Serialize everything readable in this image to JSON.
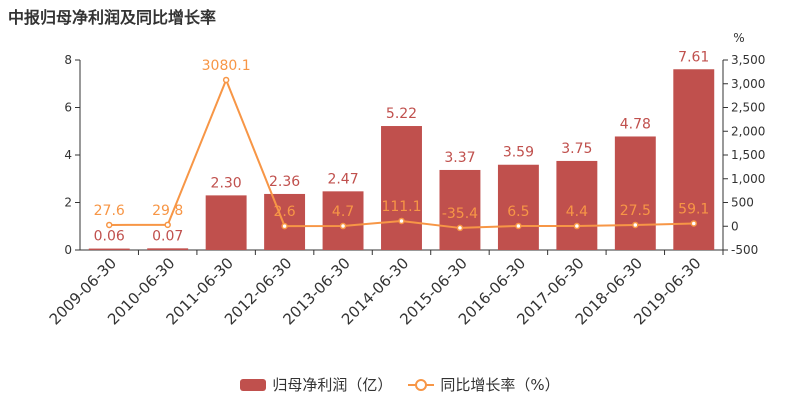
{
  "title": "中报归母净利润及同比增长率",
  "colors": {
    "bar": "#c0504d",
    "line": "#f79646",
    "axis": "#333333"
  },
  "chart_data": {
    "type": "bar",
    "title": "中报归母净利润及同比增长率",
    "categories": [
      "2009-06-30",
      "2010-06-30",
      "2011-06-30",
      "2012-06-30",
      "2013-06-30",
      "2014-06-30",
      "2015-06-30",
      "2016-06-30",
      "2017-06-30",
      "2018-06-30",
      "2019-06-30"
    ],
    "series": [
      {
        "name": "归母净利润（亿）",
        "type": "bar",
        "axis": "left",
        "values": [
          0.06,
          0.07,
          2.3,
          2.36,
          2.47,
          5.22,
          3.37,
          3.59,
          3.75,
          4.78,
          7.61
        ],
        "labels": [
          "0.06",
          "0.07",
          "2.30",
          "2.36",
          "2.47",
          "5.22",
          "3.37",
          "3.59",
          "3.75",
          "4.78",
          "7.61"
        ]
      },
      {
        "name": "同比增长率（%）",
        "type": "line",
        "axis": "right",
        "values": [
          27.6,
          29.8,
          3080.1,
          2.6,
          4.7,
          111.1,
          -35.4,
          6.5,
          4.4,
          27.5,
          59.1
        ],
        "labels": [
          "27.6",
          "29.8",
          "3080.1",
          "2.6",
          "4.7",
          "111.1",
          "-35.4",
          "6.5",
          "4.4",
          "27.5",
          "59.1"
        ]
      }
    ],
    "y_left": {
      "min": 0,
      "max": 8,
      "ticks": [
        "0",
        "2",
        "4",
        "6",
        "8"
      ],
      "tick_values": [
        0,
        2,
        4,
        6,
        8
      ]
    },
    "y_right": {
      "unit": "%",
      "min": -500,
      "max": 3500,
      "ticks": [
        "-500",
        "0",
        "500",
        "1,000",
        "1,500",
        "2,000",
        "2,500",
        "3,000",
        "3,500"
      ],
      "tick_values": [
        -500,
        0,
        500,
        1000,
        1500,
        2000,
        2500,
        3000,
        3500
      ]
    },
    "legend_position": "bottom-center",
    "grid": false
  },
  "legend": {
    "bar_label": "归母净利润（亿）",
    "line_label": "同比增长率（%）"
  }
}
